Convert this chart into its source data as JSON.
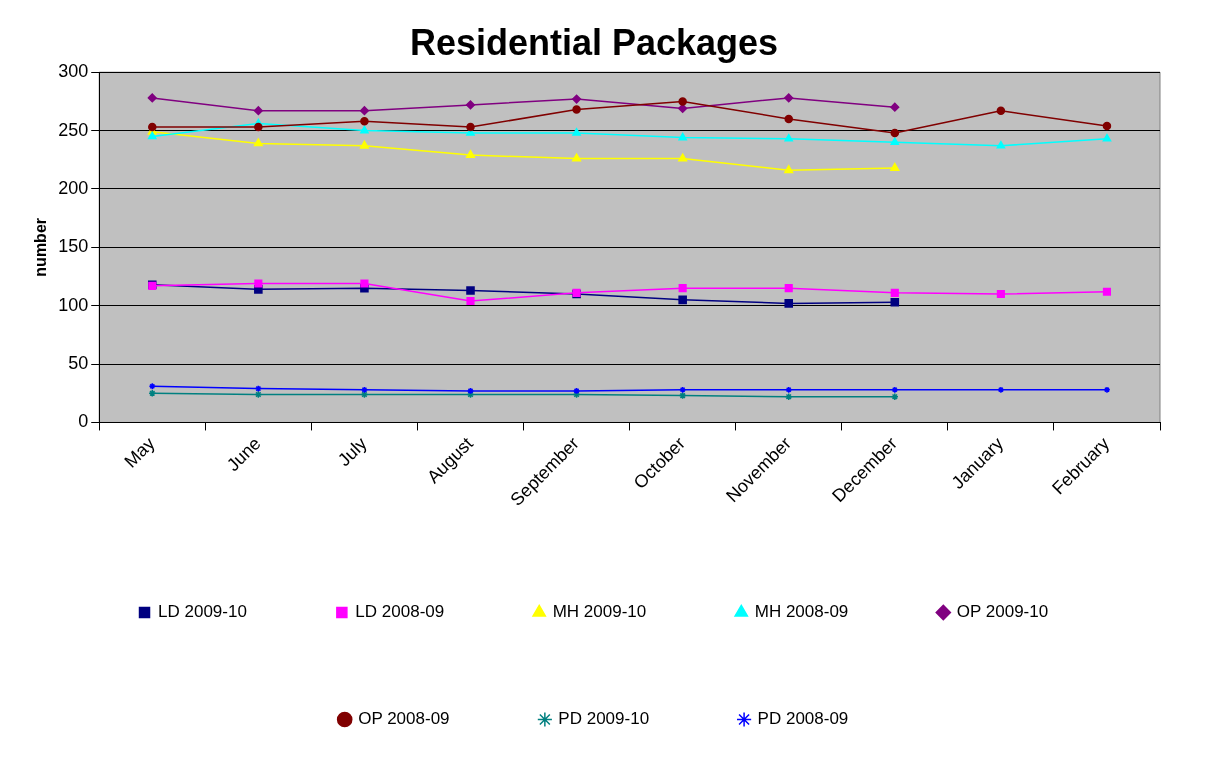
{
  "chart_data": {
    "type": "line",
    "title": "Residential Packages",
    "ylabel": "number",
    "categories": [
      "May",
      "June",
      "July",
      "August",
      "September",
      "October",
      "November",
      "December",
      "January",
      "February"
    ],
    "ylim": [
      0,
      300
    ],
    "yticks": [
      0,
      50,
      100,
      150,
      200,
      250,
      300
    ],
    "grid": "y",
    "legend": "bottom",
    "line_style": "solid",
    "series": [
      {
        "name": "LD 2009-10",
        "color": "#000080",
        "marker": "square",
        "values": [
          118,
          114,
          115,
          113,
          110,
          105,
          102,
          103,
          null,
          null
        ]
      },
      {
        "name": "LD 2008-09",
        "color": "#ff00ff",
        "marker": "square",
        "values": [
          117,
          119,
          119,
          104,
          111,
          115,
          115,
          111,
          110,
          112
        ]
      },
      {
        "name": "MH 2009-10",
        "color": "#ffff00",
        "marker": "triangle",
        "values": [
          249,
          239,
          237,
          229,
          226,
          226,
          216,
          218,
          null,
          null
        ]
      },
      {
        "name": "MH 2008-09",
        "color": "#00ffff",
        "marker": "triangle",
        "values": [
          245,
          256,
          250,
          248,
          248,
          244,
          243,
          240,
          237,
          243
        ]
      },
      {
        "name": "OP 2009-10",
        "color": "#800080",
        "marker": "diamond",
        "values": [
          278,
          267,
          267,
          272,
          277,
          269,
          278,
          270,
          null,
          null
        ]
      },
      {
        "name": "OP 2008-09",
        "color": "#800000",
        "marker": "circle",
        "values": [
          253,
          253,
          258,
          253,
          268,
          275,
          260,
          248,
          267,
          254
        ]
      },
      {
        "name": "PD 2009-10",
        "color": "#008080",
        "marker": "cross",
        "values": [
          25,
          24,
          24,
          24,
          24,
          23,
          22,
          22,
          null,
          null
        ]
      },
      {
        "name": "PD 2008-09",
        "color": "#0000ff",
        "marker": "cross",
        "values": [
          31,
          29,
          28,
          27,
          27,
          28,
          28,
          28,
          28,
          28
        ]
      }
    ]
  }
}
